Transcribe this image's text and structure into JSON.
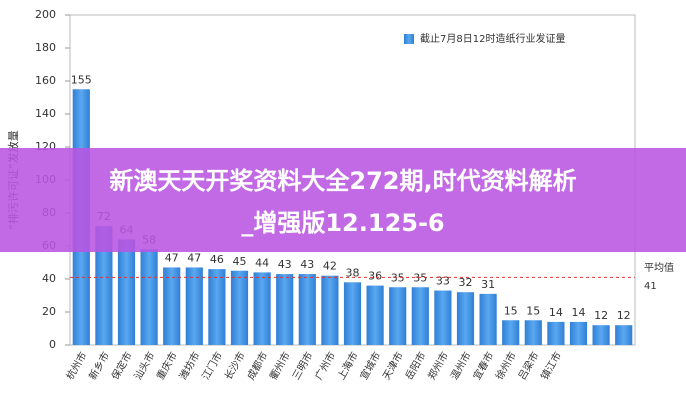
{
  "chart_data": {
    "type": "bar",
    "y_label": "“排污许可证”发放量",
    "legend_label": "截止7月8日12时造纸行业发证量",
    "categories": [
      "杭州市",
      "新乡市",
      "保定市",
      "汕头市",
      "重庆市",
      "潍坊市",
      "江门市",
      "长沙市",
      "成都市",
      "衢州市",
      "三明市",
      "广州市",
      "上海市",
      "宣城市",
      "天津市",
      "岳阳市",
      "郑州市",
      "温州市",
      "宜春市",
      "徐州市",
      "吕梁市",
      "镇江市",
      null,
      null,
      null
    ],
    "values": [
      155,
      72,
      64,
      58,
      47,
      47,
      46,
      45,
      44,
      43,
      43,
      42,
      38,
      36,
      35,
      35,
      33,
      32,
      31,
      15,
      15,
      14,
      14,
      12,
      12
    ],
    "color": "#3d8fe0",
    "ylim": [
      0,
      200
    ],
    "yticks": [
      0,
      20,
      40,
      60,
      80,
      100,
      120,
      140,
      160,
      180,
      200
    ],
    "grid": false,
    "average": {
      "label": "平均值",
      "value": 41
    },
    "banner": [
      "新澳天天开奖资料大全272期,时代资料解析",
      "_增强版12.125-6"
    ]
  }
}
